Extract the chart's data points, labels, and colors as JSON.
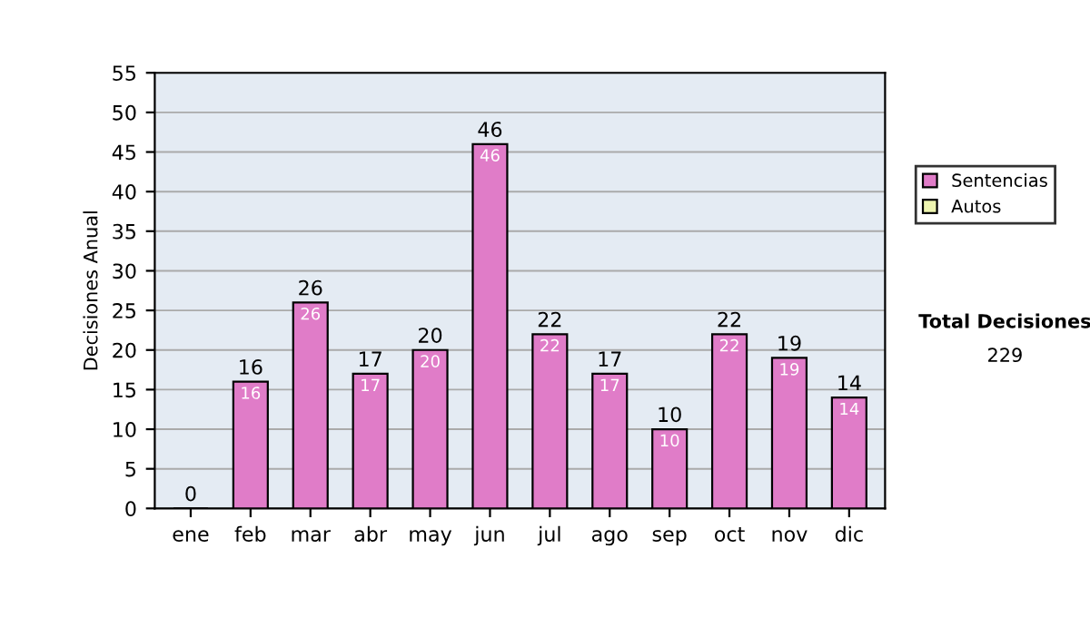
{
  "chart_data": {
    "type": "bar",
    "ylabel": "Decisiones Anual",
    "categories": [
      "ene",
      "feb",
      "mar",
      "abr",
      "may",
      "jun",
      "jul",
      "ago",
      "sep",
      "oct",
      "nov",
      "dic"
    ],
    "series": [
      {
        "name": "Sentencias",
        "color": "#e07cc8",
        "values": [
          0,
          16,
          26,
          17,
          20,
          46,
          22,
          17,
          10,
          22,
          19,
          14
        ],
        "value_labels": [
          null,
          "16",
          "26",
          "17",
          "20",
          "46",
          "22",
          "17",
          "10",
          "22",
          "19",
          "14"
        ]
      },
      {
        "name": "Autos",
        "color": "#eef5b0",
        "values": [
          null,
          null,
          null,
          null,
          null,
          null,
          null,
          null,
          null,
          null,
          null,
          null
        ]
      }
    ],
    "stacked": true,
    "totals": [
      "0",
      "16",
      "26",
      "17",
      "20",
      "46",
      "22",
      "17",
      "10",
      "22",
      "19",
      "14"
    ],
    "ylim": [
      0,
      55
    ],
    "yticks": [
      0,
      5,
      10,
      15,
      20,
      25,
      30,
      35,
      40,
      45,
      50,
      55
    ],
    "grid": "y",
    "legend": "right",
    "annotations": [
      "Total Decisiones",
      "229"
    ]
  }
}
